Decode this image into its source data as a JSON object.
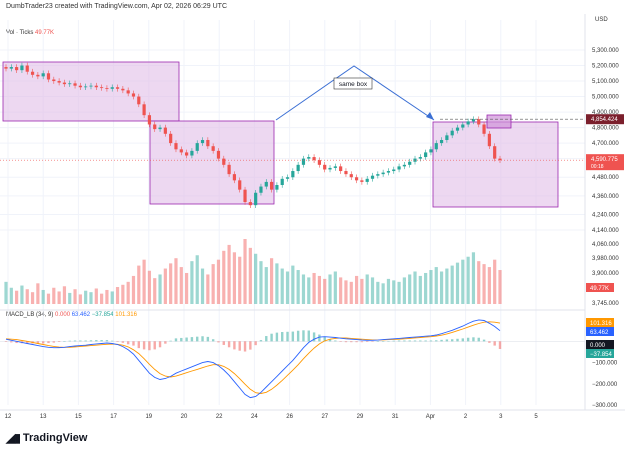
{
  "header": {
    "caption": "DumbTrader23 created with TradingView.com, Apr 02, 2026 06:29 UTC"
  },
  "currency": "USD",
  "volume_legend": {
    "label": "Vol · Ticks",
    "value": "49.77K"
  },
  "macd_legend": {
    "label": "MACD_LB (34, 9)",
    "v1": "0.000",
    "v2": "63.462",
    "v3": "−37.854",
    "v4": "101.316"
  },
  "brand": {
    "name": "TradingView"
  },
  "annotation": {
    "text": "same box"
  },
  "colors": {
    "up": "#26a69a",
    "down": "#ef5350",
    "box_fill": "#e1bee7",
    "box_stroke": "#9c27b0",
    "arrow": "#3b6fd4",
    "macd_line": "#2962ff",
    "signal_line": "#ff9800"
  },
  "chart_data": [
    {
      "type": "candlestick",
      "y_axis_ticks": [
        "5,300.000",
        "5,200.000",
        "5,100.000",
        "5,000.000",
        "4,900.000",
        "4,800.000",
        "4,700.000",
        "4,600.000",
        "4,480.000",
        "4,360.000",
        "4,240.000",
        "4,140.000"
      ],
      "x_axis_ticks": [
        "12",
        "13",
        "15",
        "17",
        "19",
        "20",
        "22",
        "24",
        "26",
        "27",
        "29",
        "31",
        "Apr",
        "2",
        "3",
        "5"
      ],
      "price_labels": {
        "high_marker": "4,854.424",
        "current": "4,590.775",
        "current_sub": "00:18"
      },
      "closes": [
        5180,
        5190,
        5170,
        5200,
        5160,
        5140,
        5130,
        5150,
        5110,
        5100,
        5090,
        5080,
        5085,
        5070,
        5060,
        5065,
        5070,
        5060,
        5055,
        5050,
        5060,
        5050,
        5040,
        5020,
        5000,
        4950,
        4880,
        4820,
        4790,
        4800,
        4760,
        4700,
        4660,
        4640,
        4620,
        4650,
        4700,
        4720,
        4680,
        4650,
        4600,
        4560,
        4500,
        4460,
        4400,
        4320,
        4300,
        4380,
        4420,
        4450,
        4400,
        4430,
        4470,
        4480,
        4520,
        4560,
        4600,
        4610,
        4590,
        4560,
        4530,
        4540,
        4550,
        4520,
        4500,
        4480,
        4460,
        4450,
        4470,
        4490,
        4500,
        4510,
        4520,
        4530,
        4550,
        4560,
        4580,
        4600,
        4610,
        4640,
        4660,
        4700,
        4720,
        4750,
        4780,
        4800,
        4820,
        4840,
        4854,
        4820,
        4760,
        4680,
        4600,
        4590
      ]
    },
    {
      "type": "bar",
      "name": "Vol · Ticks",
      "y_axis_ticks": [
        "4,060.000",
        "3,980.000",
        "3,900.000",
        "3,745.000"
      ],
      "values": [
        30,
        22,
        18,
        25,
        20,
        16,
        28,
        19,
        14,
        22,
        17,
        24,
        15,
        20,
        13,
        18,
        16,
        21,
        14,
        19,
        17,
        23,
        26,
        30,
        38,
        52,
        60,
        45,
        35,
        40,
        48,
        55,
        62,
        50,
        42,
        58,
        66,
        48,
        40,
        54,
        60,
        72,
        80,
        70,
        64,
        88,
        76,
        68,
        58,
        50,
        62,
        55,
        48,
        44,
        52,
        46,
        40,
        36,
        42,
        38,
        34,
        40,
        44,
        36,
        32,
        30,
        38,
        34,
        40,
        36,
        30,
        28,
        34,
        32,
        30,
        36,
        40,
        44,
        38,
        42,
        46,
        50,
        44,
        48,
        52,
        56,
        60,
        64,
        70,
        58,
        54,
        50,
        60,
        46
      ]
    },
    {
      "type": "line",
      "name": "MACD_LB (34, 9)",
      "y_axis_ticks": [
        "−100.000",
        "−200.000",
        "−300.000"
      ],
      "ylim": [
        -300,
        110
      ],
      "macd": [
        10,
        5,
        0,
        -5,
        -10,
        -15,
        -20,
        -25,
        -28,
        -30,
        -30,
        -28,
        -25,
        -22,
        -20,
        -18,
        -15,
        -12,
        -10,
        -8,
        -10,
        -15,
        -25,
        -40,
        -60,
        -90,
        -120,
        -150,
        -170,
        -180,
        -175,
        -165,
        -150,
        -140,
        -130,
        -120,
        -110,
        -100,
        -95,
        -100,
        -115,
        -135,
        -160,
        -190,
        -220,
        -250,
        -265,
        -260,
        -240,
        -215,
        -190,
        -165,
        -140,
        -115,
        -90,
        -60,
        -30,
        -5,
        10,
        20,
        22,
        20,
        18,
        15,
        12,
        10,
        8,
        6,
        5,
        5,
        6,
        8,
        10,
        12,
        14,
        16,
        18,
        20,
        22,
        24,
        26,
        30,
        36,
        44,
        52,
        62,
        72,
        84,
        95,
        101,
        98,
        85,
        70,
        50
      ],
      "signal": [
        12,
        10,
        8,
        4,
        0,
        -5,
        -10,
        -15,
        -20,
        -24,
        -27,
        -28,
        -28,
        -26,
        -24,
        -22,
        -20,
        -18,
        -16,
        -14,
        -13,
        -14,
        -18,
        -26,
        -40,
        -58,
        -82,
        -108,
        -132,
        -152,
        -164,
        -168,
        -164,
        -156,
        -148,
        -140,
        -132,
        -124,
        -116,
        -110,
        -110,
        -118,
        -132,
        -152,
        -176,
        -202,
        -226,
        -242,
        -246,
        -240,
        -226,
        -206,
        -184,
        -160,
        -136,
        -110,
        -82,
        -56,
        -32,
        -12,
        2,
        10,
        14,
        16,
        16,
        14,
        12,
        10,
        8,
        7,
        6,
        7,
        8,
        9,
        10,
        12,
        14,
        16,
        18,
        20,
        22,
        25,
        29,
        35,
        42,
        50,
        58,
        67,
        76,
        84,
        90,
        92,
        90,
        86
      ]
    }
  ]
}
